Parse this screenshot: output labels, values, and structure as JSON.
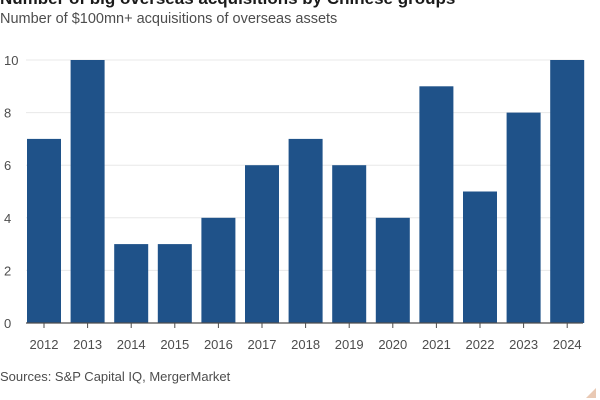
{
  "title": "Number of big overseas acquisitions by Chinese groups",
  "subtitle": "Number of $100mn+ acquisitions of overseas assets",
  "source": "Sources: S&P Capital IQ, MergerMarket",
  "colors": {
    "bar": "#1f5289",
    "gridline": "#e8e8e8",
    "axis": "#4d4d4d",
    "tick_text": "#4d4d4d"
  },
  "chart_data": {
    "type": "bar",
    "title": "Number of big overseas acquisitions by Chinese groups",
    "subtitle": "Number of $100mn+ acquisitions of overseas assets",
    "xlabel": "",
    "ylabel": "",
    "categories": [
      "2012",
      "2013",
      "2014",
      "2015",
      "2016",
      "2017",
      "2018",
      "2019",
      "2020",
      "2021",
      "2022",
      "2023",
      "2024"
    ],
    "values": [
      7,
      10,
      3,
      3,
      4,
      6,
      7,
      6,
      4,
      9,
      5,
      8,
      10
    ],
    "ylim": [
      0,
      10
    ],
    "yticks": [
      0,
      2,
      4,
      6,
      8,
      10
    ],
    "grid": true,
    "legend": "none"
  }
}
